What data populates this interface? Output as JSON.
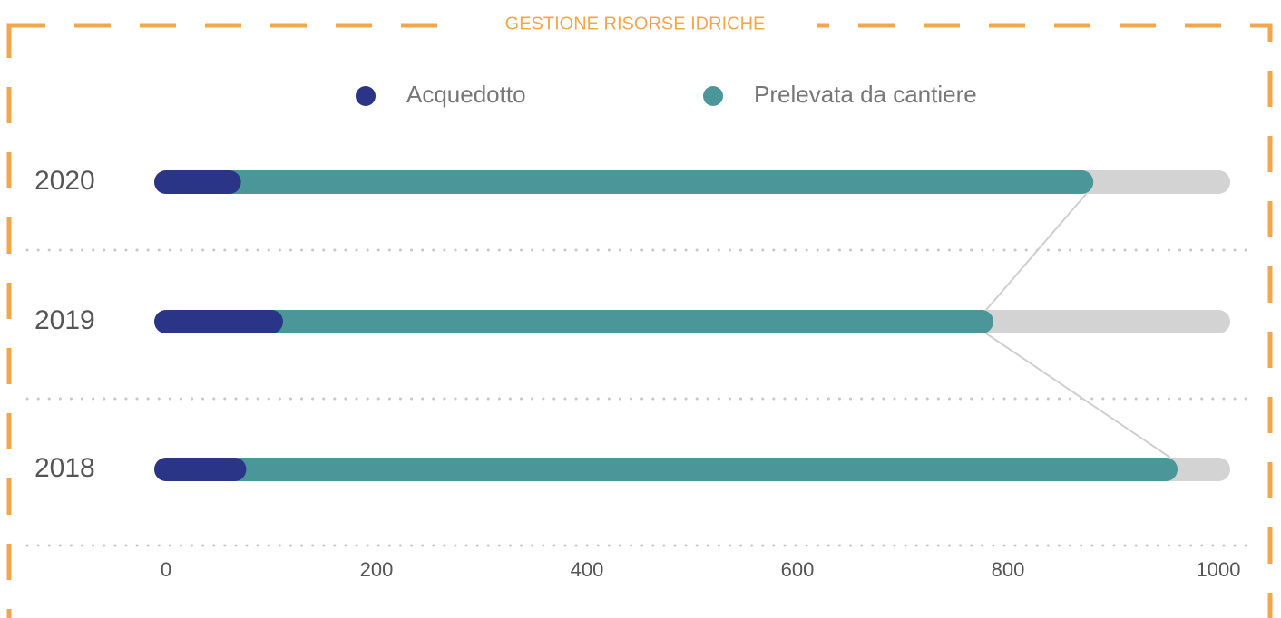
{
  "chart_data": {
    "type": "stacked-barh",
    "title": "GESTIONE RISORSE IDRICHE",
    "categories": [
      "2020",
      "2019",
      "2018"
    ],
    "series": [
      {
        "name": "Acquedotto",
        "color": "#2b3587",
        "values": [
          60,
          100,
          65
        ]
      },
      {
        "name": "Prelevata da cantiere",
        "color": "#4a9699",
        "values": [
          810,
          675,
          885
        ]
      }
    ],
    "xlim": [
      0,
      1000
    ],
    "xticks": [
      0,
      200,
      400,
      600,
      800,
      1000
    ],
    "track_color": "#d3d3d3",
    "frame_color": "#f5a54a"
  }
}
